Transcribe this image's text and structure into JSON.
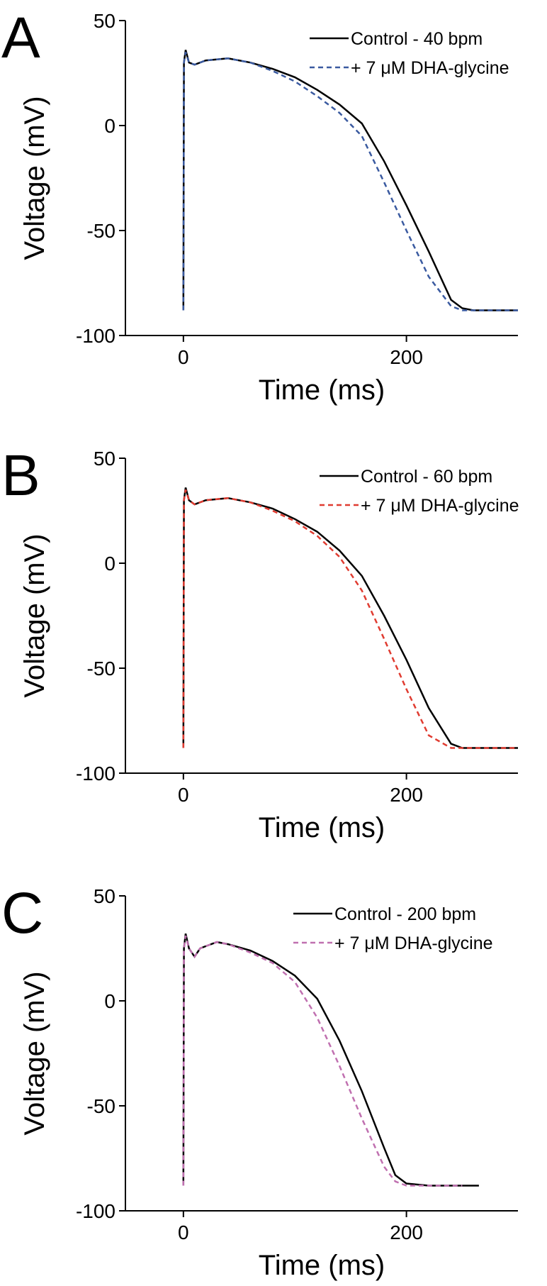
{
  "chart_data": [
    {
      "type": "line",
      "label": "A",
      "xlabel": "Time (ms)",
      "ylabel": "Voltage (mV)",
      "xlim": [
        -52,
        300
      ],
      "ylim": [
        -100,
        50
      ],
      "xticks": [
        0,
        200
      ],
      "yticks": [
        -100,
        -50,
        0,
        50
      ],
      "x": [
        0,
        0.5,
        2,
        5,
        10,
        20,
        40,
        60,
        80,
        100,
        120,
        140,
        160,
        180,
        200,
        220,
        240,
        250,
        260,
        280,
        300
      ],
      "series": [
        {
          "name": "Control - 40 bpm",
          "color": "#000000",
          "dash": false,
          "values": [
            -88,
            30,
            36,
            30,
            29,
            31,
            32,
            30,
            27,
            23,
            17,
            10,
            1,
            -17,
            -38,
            -60,
            -83,
            -87,
            -88,
            -88,
            -88
          ]
        },
        {
          "name": "+ 7 μM DHA-glycine",
          "color": "#3a5aa0",
          "dash": true,
          "values": [
            -88,
            30,
            35,
            30,
            29,
            31,
            32,
            30,
            26,
            21,
            14,
            6,
            -5,
            -27,
            -50,
            -72,
            -86,
            -88,
            -88,
            -88,
            -88
          ]
        }
      ]
    },
    {
      "type": "line",
      "label": "B",
      "xlabel": "Time (ms)",
      "ylabel": "Voltage (mV)",
      "xlim": [
        -52,
        300
      ],
      "ylim": [
        -100,
        50
      ],
      "xticks": [
        0,
        200
      ],
      "yticks": [
        -100,
        -50,
        0,
        50
      ],
      "x": [
        0,
        0.5,
        2,
        5,
        10,
        20,
        40,
        60,
        80,
        100,
        120,
        140,
        160,
        180,
        200,
        220,
        240,
        250,
        260,
        280,
        300
      ],
      "series": [
        {
          "name": "Control - 60 bpm",
          "color": "#000000",
          "dash": false,
          "values": [
            -88,
            30,
            36,
            30,
            28,
            30,
            31,
            29,
            26,
            21,
            15,
            6,
            -6,
            -25,
            -46,
            -69,
            -86,
            -88,
            -88,
            -88,
            -88
          ]
        },
        {
          "name": "+ 7 μM DHA-glycine",
          "color": "#e03c31",
          "dash": true,
          "values": [
            -88,
            30,
            35,
            30,
            28,
            30,
            31,
            29,
            25,
            20,
            13,
            3,
            -13,
            -36,
            -60,
            -82,
            -88,
            -88,
            -88,
            -88,
            -88
          ]
        }
      ]
    },
    {
      "type": "line",
      "label": "C",
      "xlabel": "Time (ms)",
      "ylabel": "Voltage (mV)",
      "xlim": [
        -52,
        300
      ],
      "ylim": [
        -100,
        50
      ],
      "xticks": [
        0,
        200
      ],
      "yticks": [
        -100,
        -50,
        0,
        50
      ],
      "x": [
        0,
        0.5,
        2,
        5,
        10,
        15,
        20,
        30,
        40,
        60,
        80,
        100,
        120,
        140,
        160,
        180,
        190,
        200,
        220,
        240,
        250,
        265
      ],
      "series": [
        {
          "name": "Control - 200 bpm",
          "color": "#000000",
          "dash": false,
          "values": [
            -88,
            25,
            32,
            25,
            21,
            25,
            26,
            28,
            27,
            24,
            19,
            12,
            1,
            -19,
            -43,
            -70,
            -83,
            -87,
            -88,
            -88,
            -88,
            -88
          ]
        },
        {
          "name": "+ 7 μM DHA-glycine",
          "color": "#c070b0",
          "dash": true,
          "values": [
            -88,
            25,
            31,
            25,
            21,
            25,
            26,
            28,
            27,
            23,
            18,
            9,
            -8,
            -31,
            -56,
            -79,
            -86,
            -88,
            -88,
            -88,
            -88,
            null
          ]
        }
      ]
    }
  ]
}
